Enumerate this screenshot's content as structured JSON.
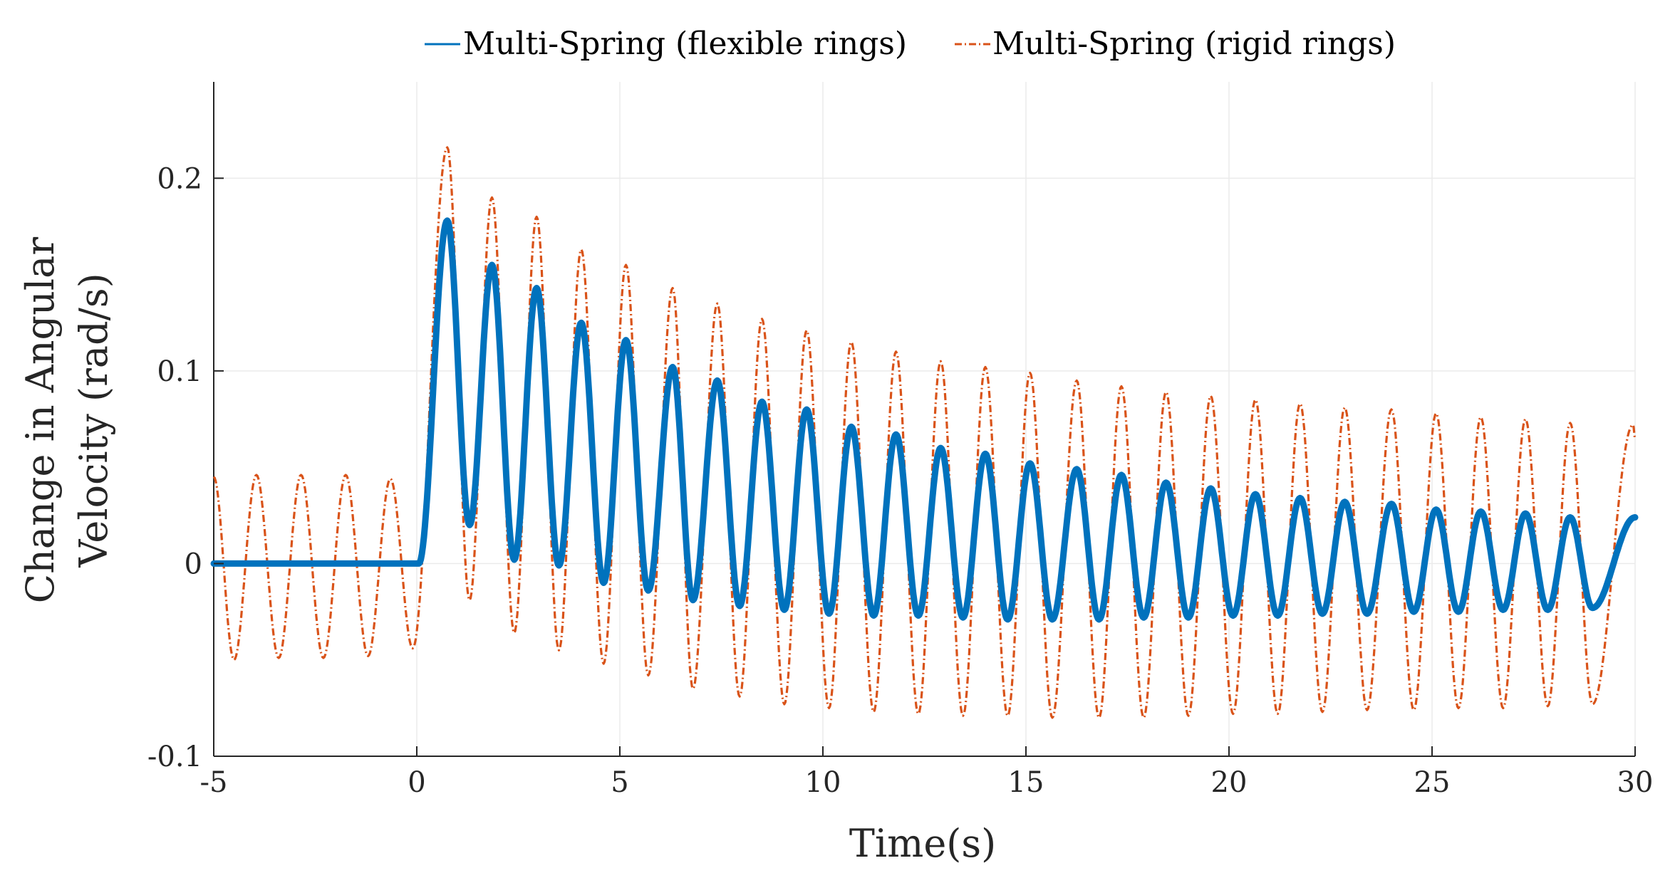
{
  "chart_data": {
    "type": "line",
    "title": "",
    "xlabel": "Time(s)",
    "ylabel_lines": [
      "Change in Angular",
      "Velocity (rad/s)"
    ],
    "xlim": [
      -5,
      30
    ],
    "ylim": [
      -0.1,
      0.25
    ],
    "grid": true,
    "legend_position": "top-center",
    "xticks": [
      -5,
      0,
      5,
      10,
      15,
      20,
      25,
      30
    ],
    "xtick_labels": [
      "-5",
      "0",
      "5",
      "10",
      "15",
      "20",
      "25",
      "30"
    ],
    "yticks": [
      -0.1,
      0,
      0.1,
      0.2
    ],
    "ytick_labels": [
      "-0.1",
      "0",
      "0.1",
      "0.2"
    ],
    "series": [
      {
        "name": "Multi-Spring (flexible rings)",
        "color": "#0072BD",
        "style": "solid",
        "pre_step_value": 0,
        "step_time": 0,
        "period": 1.1,
        "peaks": [
          [
            0.75,
            0.178
          ],
          [
            1.85,
            0.155
          ],
          [
            2.95,
            0.143
          ],
          [
            4.05,
            0.125
          ],
          [
            5.15,
            0.116
          ],
          [
            6.3,
            0.102
          ],
          [
            7.4,
            0.095
          ],
          [
            8.5,
            0.084
          ],
          [
            9.6,
            0.08
          ],
          [
            10.7,
            0.071
          ],
          [
            11.8,
            0.067
          ],
          [
            12.9,
            0.06
          ],
          [
            14.0,
            0.057
          ],
          [
            15.1,
            0.052
          ],
          [
            16.25,
            0.049
          ],
          [
            17.35,
            0.046
          ],
          [
            18.45,
            0.042
          ],
          [
            19.55,
            0.039
          ],
          [
            20.65,
            0.036
          ],
          [
            21.75,
            0.034
          ],
          [
            22.85,
            0.032
          ],
          [
            24.0,
            0.031
          ],
          [
            25.1,
            0.028
          ],
          [
            26.2,
            0.027
          ],
          [
            27.3,
            0.026
          ],
          [
            28.4,
            0.024
          ]
        ],
        "troughs": [
          [
            1.3,
            0.02
          ],
          [
            2.4,
            0.002
          ],
          [
            3.5,
            -0.001
          ],
          [
            4.6,
            -0.01
          ],
          [
            5.7,
            -0.014
          ],
          [
            6.8,
            -0.019
          ],
          [
            7.95,
            -0.022
          ],
          [
            9.05,
            -0.024
          ],
          [
            10.15,
            -0.026
          ],
          [
            11.25,
            -0.027
          ],
          [
            12.35,
            -0.027
          ],
          [
            13.45,
            -0.028
          ],
          [
            14.55,
            -0.029
          ],
          [
            15.65,
            -0.029
          ],
          [
            16.8,
            -0.029
          ],
          [
            17.9,
            -0.028
          ],
          [
            19.0,
            -0.028
          ],
          [
            20.1,
            -0.027
          ],
          [
            21.2,
            -0.027
          ],
          [
            22.3,
            -0.026
          ],
          [
            23.4,
            -0.026
          ],
          [
            24.55,
            -0.025
          ],
          [
            25.65,
            -0.025
          ],
          [
            26.75,
            -0.024
          ],
          [
            27.85,
            -0.024
          ],
          [
            28.95,
            -0.023
          ]
        ],
        "end_value": 0.024
      },
      {
        "name": "Multi-Spring (rigid rings)",
        "color": "#D95319",
        "style": "dashdot",
        "pre_step_amplitude": 0.047,
        "pre_step_start": [
          -5,
          0.045
        ],
        "period": 1.1,
        "peaks": [
          [
            -3.95,
            0.046
          ],
          [
            -2.85,
            0.046
          ],
          [
            -1.75,
            0.046
          ],
          [
            -0.65,
            0.044
          ],
          [
            0.75,
            0.216
          ],
          [
            1.85,
            0.19
          ],
          [
            2.95,
            0.18
          ],
          [
            4.05,
            0.163
          ],
          [
            5.15,
            0.155
          ],
          [
            6.3,
            0.143
          ],
          [
            7.4,
            0.135
          ],
          [
            8.5,
            0.127
          ],
          [
            9.6,
            0.121
          ],
          [
            10.7,
            0.115
          ],
          [
            11.8,
            0.11
          ],
          [
            12.9,
            0.105
          ],
          [
            14.0,
            0.102
          ],
          [
            15.1,
            0.099
          ],
          [
            16.25,
            0.095
          ],
          [
            17.35,
            0.092
          ],
          [
            18.45,
            0.089
          ],
          [
            19.55,
            0.087
          ],
          [
            20.65,
            0.085
          ],
          [
            21.75,
            0.083
          ],
          [
            22.85,
            0.081
          ],
          [
            24.0,
            0.08
          ],
          [
            25.1,
            0.078
          ],
          [
            26.2,
            0.076
          ],
          [
            27.3,
            0.075
          ],
          [
            28.4,
            0.073
          ],
          [
            29.95,
            0.072
          ]
        ],
        "troughs": [
          [
            -4.5,
            -0.05
          ],
          [
            -3.4,
            -0.049
          ],
          [
            -2.3,
            -0.049
          ],
          [
            -1.2,
            -0.048
          ],
          [
            -0.1,
            -0.044
          ],
          [
            1.3,
            -0.019
          ],
          [
            2.4,
            -0.036
          ],
          [
            3.5,
            -0.045
          ],
          [
            4.6,
            -0.052
          ],
          [
            5.7,
            -0.058
          ],
          [
            6.8,
            -0.065
          ],
          [
            7.95,
            -0.069
          ],
          [
            9.05,
            -0.073
          ],
          [
            10.15,
            -0.075
          ],
          [
            11.25,
            -0.077
          ],
          [
            12.35,
            -0.078
          ],
          [
            13.45,
            -0.079
          ],
          [
            14.55,
            -0.079
          ],
          [
            15.65,
            -0.08
          ],
          [
            16.8,
            -0.08
          ],
          [
            17.9,
            -0.08
          ],
          [
            19.0,
            -0.079
          ],
          [
            20.1,
            -0.078
          ],
          [
            21.2,
            -0.078
          ],
          [
            22.3,
            -0.077
          ],
          [
            23.4,
            -0.076
          ],
          [
            24.55,
            -0.076
          ],
          [
            25.65,
            -0.075
          ],
          [
            26.75,
            -0.075
          ],
          [
            27.85,
            -0.074
          ],
          [
            28.95,
            -0.073
          ]
        ],
        "end_value": 0.065
      }
    ]
  }
}
